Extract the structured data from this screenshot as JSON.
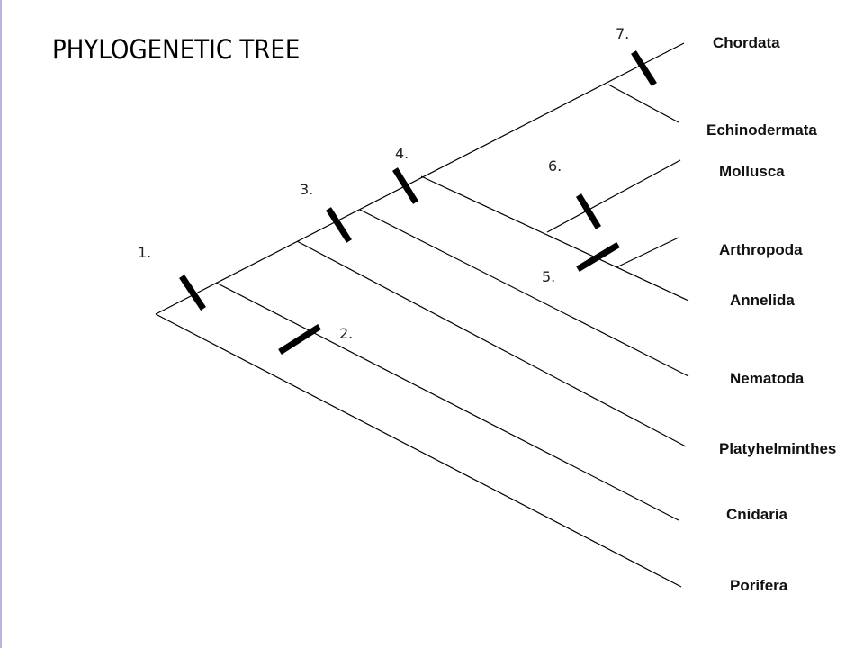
{
  "title": "PHYLOGENETIC TREE",
  "taxa": {
    "chordata": "Chordata",
    "echinodermata": "Echinodermata",
    "mollusca": "Mollusca",
    "arthropoda": "Arthropoda",
    "annelida": "Annelida",
    "nematoda": "Nematoda",
    "platyhelminthes": "Platyhelminthes",
    "cnidaria": "Cnidaria",
    "porifera": "Porifera"
  },
  "markers": {
    "m1": "1.",
    "m2": "2.",
    "m3": "3.",
    "m4": "4.",
    "m5": "5.",
    "m6": "6.",
    "m7": "7."
  }
}
